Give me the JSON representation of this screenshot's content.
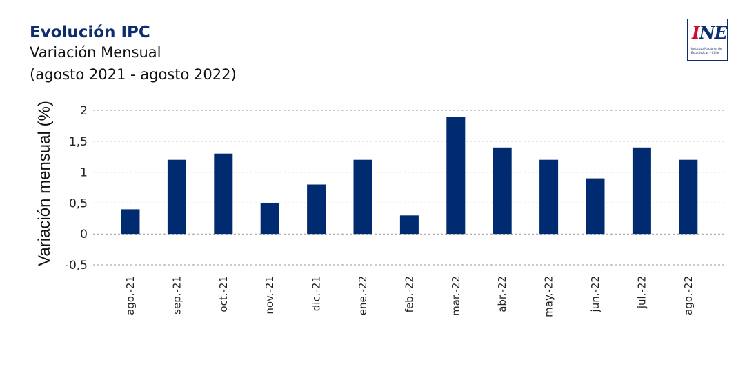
{
  "header": {
    "title": "Evolución IPC",
    "subtitle": "Variación Mensual",
    "period": "(agosto 2021 - agosto 2022)"
  },
  "logo": {
    "mark_i": "I",
    "mark_ne": "NE",
    "caption_line1": "Instituto Nacional de",
    "caption_line2": "Estadísticas · Chile"
  },
  "colors": {
    "bar": "#002b70",
    "title": "#0c2d6e",
    "logo_red": "#c8102e"
  },
  "chart_data": {
    "type": "bar",
    "title": "Evolución IPC",
    "subtitle": "Variación Mensual",
    "xlabel": "",
    "ylabel": "Variación mensual (%)",
    "ylim": [
      -0.5,
      2
    ],
    "yticks": [
      -0.5,
      0,
      0.5,
      1,
      1.5,
      2
    ],
    "ytick_labels": [
      "-0,5",
      "0",
      "0,5",
      "1",
      "1,5",
      "2"
    ],
    "grid": true,
    "categories": [
      "ago.-21",
      "sep.-21",
      "oct.-21",
      "nov.-21",
      "dic.-21",
      "ene.-22",
      "feb.-22",
      "mar.-22",
      "abr.-22",
      "may.-22",
      "jun.-22",
      "jul.-22",
      "ago.-22"
    ],
    "values": [
      0.4,
      1.2,
      1.3,
      0.5,
      0.8,
      1.2,
      0.3,
      1.9,
      1.4,
      1.2,
      0.9,
      1.4,
      1.2
    ]
  }
}
